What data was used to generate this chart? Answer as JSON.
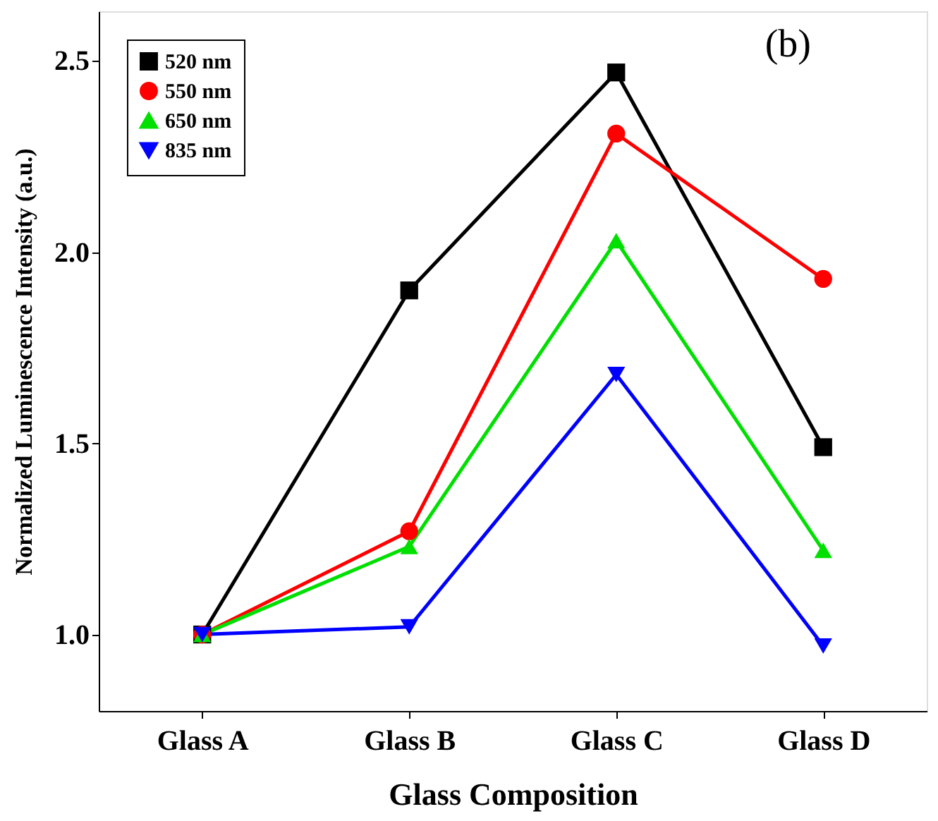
{
  "chart_data": {
    "type": "line",
    "xlabel": "Glass Composition",
    "ylabel": "Normalized Luminescence Intensity (a.u.)",
    "categories": [
      "Glass A",
      "Glass B",
      "Glass C",
      "Glass D"
    ],
    "series": [
      {
        "name": "520 nm",
        "color": "#000000",
        "marker": "square",
        "values": [
          1.0,
          1.9,
          2.47,
          1.49
        ]
      },
      {
        "name": "550 nm",
        "color": "#ff0000",
        "marker": "circle",
        "values": [
          1.0,
          1.27,
          2.31,
          1.93
        ]
      },
      {
        "name": "650 nm",
        "color": "#00e000",
        "marker": "triangle",
        "values": [
          1.0,
          1.23,
          2.03,
          1.22
        ]
      },
      {
        "name": "835 nm",
        "color": "#0000ff",
        "marker": "triangle-down",
        "values": [
          1.0,
          1.02,
          1.68,
          0.97
        ]
      }
    ],
    "ylim": [
      0.8,
      2.63
    ],
    "yticks": [
      {
        "value": 1,
        "label": "1.0"
      },
      1.5,
      {
        "value": 2,
        "label": "2.0"
      },
      2.5
    ],
    "annotations": [
      "(b)"
    ],
    "legend": "top left",
    "grid": false,
    "line_style": "solid"
  }
}
